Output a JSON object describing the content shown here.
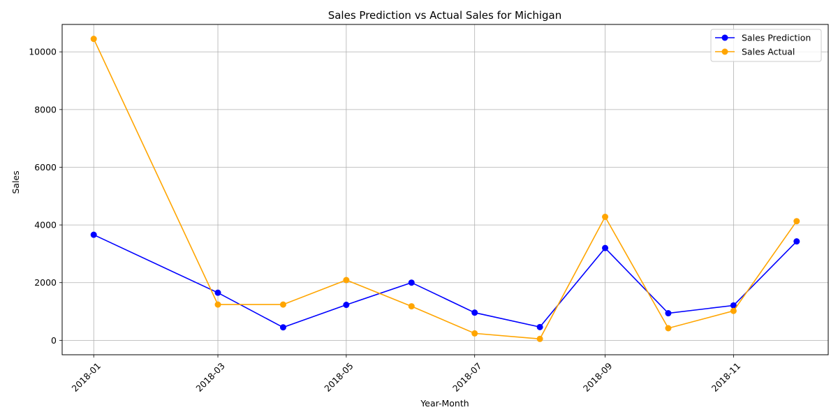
{
  "chart_data": {
    "type": "line",
    "title": "Sales Prediction vs Actual Sales for Michigan",
    "xlabel": "Year-Month",
    "ylabel": "Sales",
    "x": [
      "2018-01-01",
      "2018-03-01",
      "2018-04-01",
      "2018-05-01",
      "2018-06-01",
      "2018-07-01",
      "2018-08-01",
      "2018-09-01",
      "2018-10-01",
      "2018-11-01",
      "2018-12-01"
    ],
    "x_range": [
      "2017-12-17",
      "2018-12-16"
    ],
    "x_ticks": [
      "2018-01",
      "2018-03",
      "2018-05",
      "2018-07",
      "2018-09",
      "2018-11"
    ],
    "y_ticks": [
      0,
      2000,
      4000,
      6000,
      8000,
      10000
    ],
    "ylim": [
      -500,
      10950
    ],
    "grid": true,
    "legend_position": "top-right",
    "series": [
      {
        "name": "Sales Prediction",
        "color": "#0000ff",
        "values": [
          3660,
          1650,
          450,
          1230,
          2000,
          960,
          460,
          3200,
          940,
          1210,
          3430
        ]
      },
      {
        "name": "Sales Actual",
        "color": "#ffa500",
        "values": [
          10450,
          1240,
          1240,
          2090,
          1180,
          240,
          50,
          4280,
          420,
          1020,
          4130
        ]
      }
    ]
  }
}
